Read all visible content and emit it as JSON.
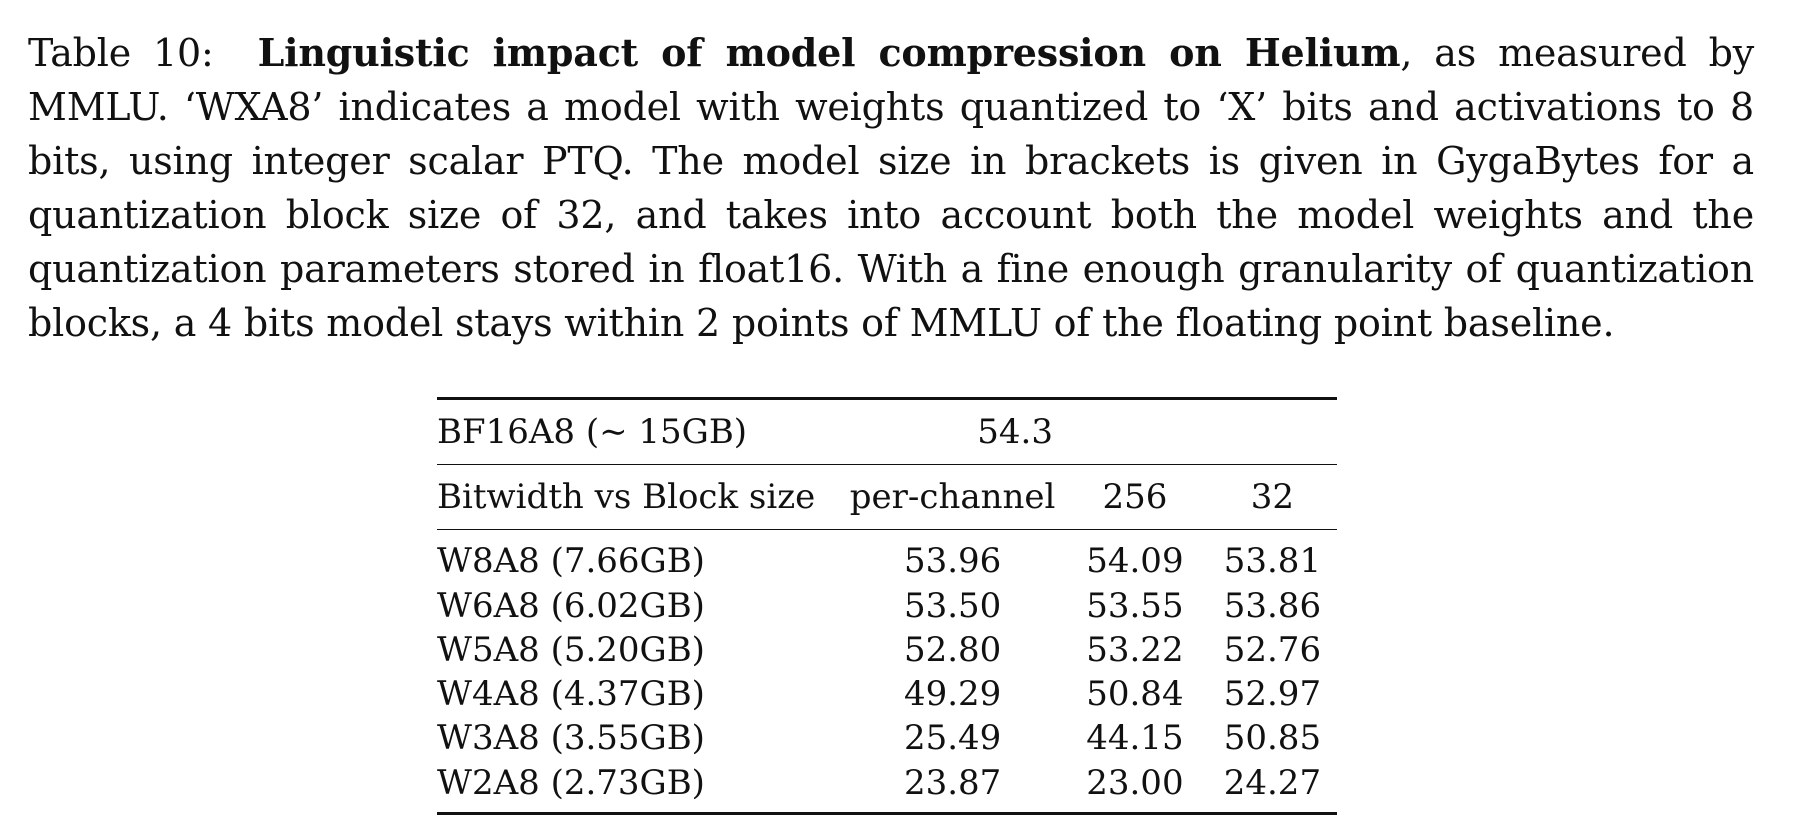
{
  "caption": {
    "label": "Table 10:",
    "title": "Linguistic impact of model compression on Helium",
    "body": ", as measured by MMLU. ‘WXA8’ indicates a model with weights quantized to ‘X’ bits and activations to 8 bits, using integer scalar PTQ. The model size in brackets is given in GygaBytes for a quantization block size of 32, and takes into account both the model weights and the quantization parameters stored in float16. With a fine enough granularity of quantization blocks, a 4 bits model stays within 2 points of MMLU of the floating point baseline."
  },
  "table": {
    "baseline": {
      "label": "BF16A8 (∼ 15GB)",
      "value": "54.3"
    },
    "columns": [
      "Bitwidth vs Block size",
      "per-channel",
      "256",
      "32"
    ],
    "rows": [
      {
        "model": "W8A8 (7.66GB)",
        "per_channel": "53.96",
        "b256": "54.09",
        "b32": "53.81"
      },
      {
        "model": "W6A8 (6.02GB)",
        "per_channel": "53.50",
        "b256": "53.55",
        "b32": "53.86"
      },
      {
        "model": "W5A8 (5.20GB)",
        "per_channel": "52.80",
        "b256": "53.22",
        "b32": "52.76"
      },
      {
        "model": "W4A8 (4.37GB)",
        "per_channel": "49.29",
        "b256": "50.84",
        "b32": "52.97"
      },
      {
        "model": "W3A8 (3.55GB)",
        "per_channel": "25.49",
        "b256": "44.15",
        "b32": "50.85"
      },
      {
        "model": "W2A8 (2.73GB)",
        "per_channel": "23.87",
        "b256": "23.00",
        "b32": "24.27"
      }
    ]
  }
}
